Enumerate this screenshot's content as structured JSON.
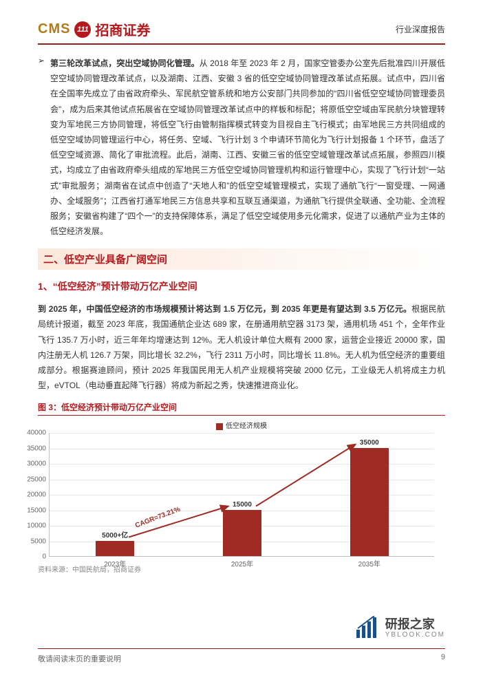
{
  "header": {
    "logo_en": "CMS",
    "logo_num": "111",
    "logo_cn": "招商证券",
    "doc_type": "行业深度报告"
  },
  "bullet": {
    "marker": "➢",
    "lead": "第三轮改革试点，突出空域协同化管理。",
    "body": "从 2018 年至 2023 年 2 月，国家空管委办公室先后批准四川开展低空空域协同管理改革试点，以及湖南、江西、安徽 3 省的低空空域协同管理改革试点拓展。试点中，四川省在全国率先成立了由省政府牵头、军民航空管系统和地方公安部门共同参加的“四川省低空空域协同管理委员会”，成为后来其他试点拓展省在空域协同管理改革试点中的样板和标配；将原低空空域由军民航分块管理转变为军地民三方协同管理，将低空飞行由管制指挥模式转变为目视自主飞行模式；由军地民三方共同组成的低空空域协同管理运行中心，将任务、空域、飞行计划 3 个申请环节简化为飞行计划报备 1 个环节，盘活了低空空域资源、简化了审批流程。此后，湖南、江西、安徽三省的低空空域管理改革试点拓展，参照四川模式，均成立了由省政府牵头组成的军地民三方低空空域协同管理机构和运行管理中心，实现了飞行计划“一站式”审批服务；湖南省在试点中创造了“天地人和”的低空空域管理模式，实现了通航飞行“一窗受理、一网通办、全域服务”；江西省打通军地民三方信息共享和互联互通渠道，为通航飞行提供全联通、全功能、全流程服务；安徽省构建了“四个一”的支持保障体系，满足了低空空域使用多元化需求，促进了以通航产业为主体的低空经济发展。"
  },
  "h2": "二、低空产业具备广阔空间",
  "h3": "1、“低空经济”预计带动万亿产业空间",
  "para2": {
    "lead": "到 2025 年，中国低空经济的市场规模预计将达到 1.5 万亿元，到 2035 年更是有望达到 3.5 万亿元。",
    "body": "根据民航局统计报道，截至 2023 年底，我国通航企业达 689 家，在册通用航空器 3173 架，通用机场 451 个，全年作业飞行 135.7 万小时，近三年年均增速达到 12%。无人机设计单位大概有 2000 家，运营企业接近 20000 家，国内注册无人机 126.7 万架，同比增长 32.2%，飞行 2311 万小时，同比增长 11.8%。无人机为低空经济的重要组成部分。根据赛迪顾问，预计 2025 年我国民用无人机产业规模将突破 2000 亿元，工业级无人机将成主力机型，eVTOL（电动垂直起降飞行器）将成为新起之秀，快速推进商业化。"
  },
  "figure": {
    "title": "图 3：低空经济预计带动万亿产业空间",
    "legend": "低空经济规模",
    "type": "bar",
    "ylim": [
      0,
      40000
    ],
    "ytick_step": 5000,
    "yticks": [
      "0",
      "5000",
      "10000",
      "15000",
      "20000",
      "25000",
      "30000",
      "35000",
      "40000"
    ],
    "categories": [
      "2023年",
      "2025年",
      "2035年"
    ],
    "values": [
      5000,
      15000,
      35000
    ],
    "value_labels": [
      "5000+亿",
      "15000",
      "35000"
    ],
    "bar_color": "#9e2b24",
    "grid_color": "#e8e8e8",
    "axis_color": "#bfbfbf",
    "background_color": "#ffffff",
    "cagr_text": "CAGR=73.21%",
    "source": "资料来源：中国民航局，招商证券"
  },
  "footer": {
    "note": "敬请阅读末页的重要说明",
    "page": "9"
  },
  "watermark": {
    "cn": "研报之家",
    "en": "YBLOOK.COM"
  }
}
